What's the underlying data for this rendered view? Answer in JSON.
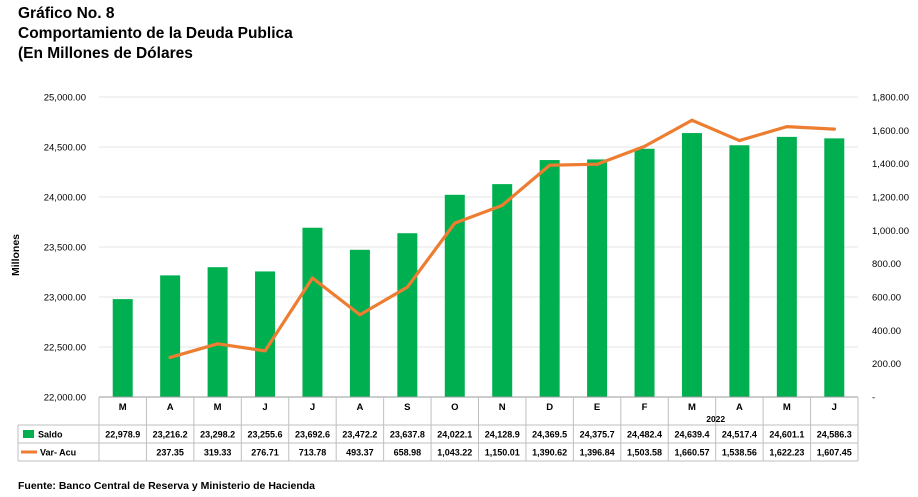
{
  "title_lines": [
    "Gráfico No. 8",
    "Comportamiento de la Deuda Publica",
    "(En Millones de Dólares"
  ],
  "source": "Fuente: Banco Central de Reserva y Ministerio de Hacienda",
  "colors": {
    "bar": "#00B050",
    "line": "#ED7D31",
    "grid": "#E6E6E6",
    "table_border": "#BFBFBF"
  },
  "chart_data": {
    "type": "bar+line",
    "ylabel": "Millones",
    "year_label": "2022",
    "categories": [
      "M",
      "A",
      "M",
      "J",
      "J",
      "A",
      "S",
      "O",
      "N",
      "D",
      "E",
      "F",
      "M",
      "A",
      "M",
      "J"
    ],
    "left_axis": {
      "min": 22000,
      "max": 25000,
      "step": 500,
      "tick_labels": [
        "22,000.00",
        "22,500.00",
        "23,000.00",
        "23,500.00",
        "24,000.00",
        "24,500.00",
        "25,000.00"
      ]
    },
    "right_axis": {
      "min": 0,
      "max": 1800,
      "step": 200,
      "tick_labels": [
        "-",
        "200.00",
        "400.00",
        "600.00",
        "800.00",
        "1,000.00",
        "1,200.00",
        "1,400.00",
        "1,600.00",
        "1,800.00"
      ]
    },
    "series": [
      {
        "name": "Saldo",
        "type": "bar",
        "axis": "left",
        "values": [
          22978.9,
          23216.2,
          23298.2,
          23255.6,
          23692.6,
          23472.2,
          23637.8,
          24022.1,
          24128.9,
          24369.5,
          24375.7,
          24482.4,
          24639.4,
          24517.4,
          24601.1,
          24586.3
        ],
        "labels": [
          "22,978.9",
          "23,216.2",
          "23,298.2",
          "23,255.6",
          "23,692.6",
          "23,472.2",
          "23,637.8",
          "24,022.1",
          "24,128.9",
          "24,369.5",
          "24,375.7",
          "24,482.4",
          "24,639.4",
          "24,517.4",
          "24,601.1",
          "24,586.3"
        ]
      },
      {
        "name": "Var- Acu",
        "type": "line",
        "axis": "right",
        "values": [
          null,
          237.35,
          319.33,
          276.71,
          713.78,
          493.37,
          658.98,
          1043.22,
          1150.01,
          1390.62,
          1396.84,
          1503.58,
          1660.57,
          1538.56,
          1622.23,
          1607.45
        ],
        "labels": [
          "",
          "237.35",
          "319.33",
          "276.71",
          "713.78",
          "493.37",
          "658.98",
          "1,043.22",
          "1,150.01",
          "1,390.62",
          "1,396.84",
          "1,503.58",
          "1,660.57",
          "1,538.56",
          "1,622.23",
          "1,607.45"
        ]
      }
    ]
  }
}
